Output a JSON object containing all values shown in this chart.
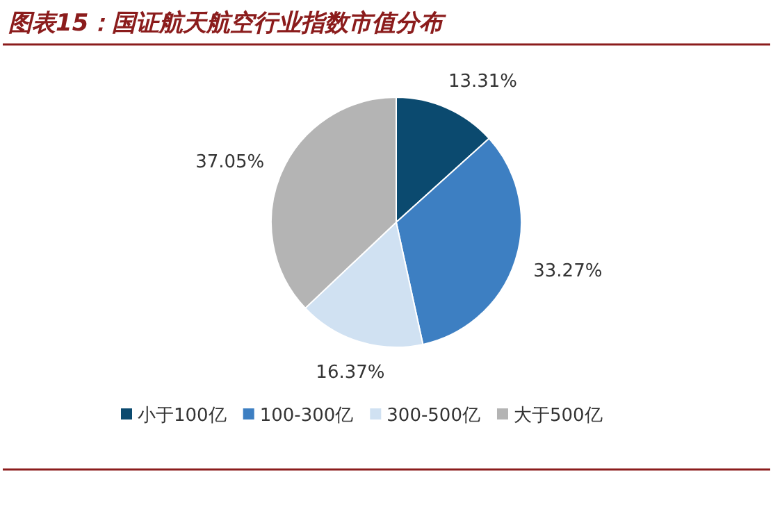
{
  "chart_data": {
    "type": "pie",
    "title": "图表15：国证航天航空行业指数市值分布",
    "categories": [
      "小于100亿",
      "100-300亿",
      "300-500亿",
      "大于500亿"
    ],
    "values": [
      13.31,
      33.27,
      16.37,
      37.05
    ],
    "colors": [
      "#0b4a6f",
      "#3d7fc2",
      "#d0e1f2",
      "#b4b4b4"
    ],
    "value_labels": [
      "13.31%",
      "33.27%",
      "16.37%",
      "37.05%"
    ],
    "legend": "bottom"
  }
}
